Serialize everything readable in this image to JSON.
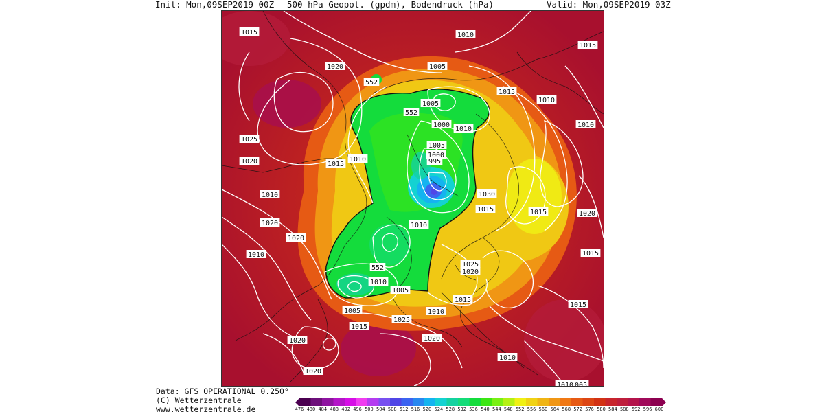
{
  "header": {
    "init": "Init: Mon,09SEP2019 00Z",
    "title": "500 hPa Geopot. (gpdm), Bodendruck (hPa)",
    "valid": "Valid: Mon,09SEP2019 03Z"
  },
  "footer": {
    "data_source": "Data: GFS OPERATIONAL 0.250°",
    "copyright": "(C) Wetterzentrale",
    "url": "www.wetterzentrale.de"
  },
  "colorbar": {
    "ticks": [
      "476",
      "480",
      "484",
      "488",
      "492",
      "496",
      "500",
      "504",
      "508",
      "512",
      "516",
      "520",
      "524",
      "528",
      "532",
      "536",
      "540",
      "544",
      "548",
      "552",
      "556",
      "560",
      "564",
      "568",
      "572",
      "576",
      "580",
      "584",
      "588",
      "592",
      "596",
      "600"
    ],
    "colors": [
      "#4b0050",
      "#6d0f7a",
      "#8e14a0",
      "#b414c8",
      "#d60ee6",
      "#f03cf0",
      "#b43cf0",
      "#7850f0",
      "#5046e6",
      "#3c64f0",
      "#2888f0",
      "#14b4f0",
      "#14d2d2",
      "#14d2a0",
      "#14dc78",
      "#14dc3c",
      "#3ce614",
      "#78f014",
      "#b4f014",
      "#f0f014",
      "#f0d214",
      "#f0b414",
      "#f09614",
      "#f07814",
      "#e65a14",
      "#dc4614",
      "#d23214",
      "#c8252c",
      "#be1e3c",
      "#b4144b",
      "#a00a5a",
      "#8c0050"
    ]
  },
  "map": {
    "spike_label": "552",
    "isobar_labels": [
      "1015",
      "1010",
      "1020",
      "1005",
      "1015",
      "1010",
      "1005",
      "552",
      "552",
      "1000",
      "1010",
      "1005",
      "1000",
      "995",
      "1025",
      "1020",
      "1015",
      "1010",
      "1010",
      "1020",
      "1030",
      "1015",
      "1015",
      "1020",
      "1010",
      "1010",
      "1015",
      "1025",
      "1020",
      "1020",
      "1010",
      "1015",
      "1015",
      "1005",
      "552",
      "1010",
      "1010",
      "1005",
      "1015",
      "1025",
      "1020",
      "1015",
      "1020",
      "1020",
      "1010",
      "1010",
      "1005"
    ],
    "legend_colors": {
      "sea": "#c8252c",
      "land_lines": "#111111",
      "isobar": "#ffffff"
    }
  }
}
